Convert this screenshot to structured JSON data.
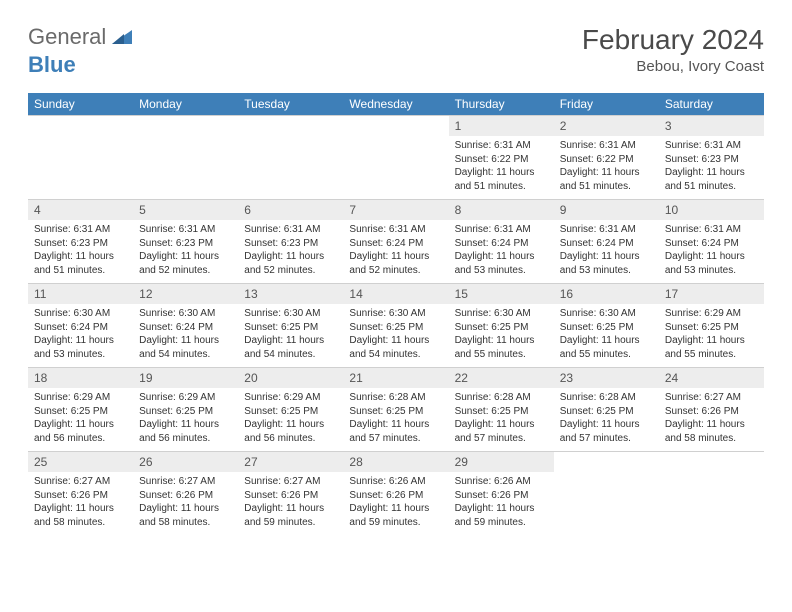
{
  "logo": {
    "general": "General",
    "blue": "Blue"
  },
  "title": "February 2024",
  "location": "Bebou, Ivory Coast",
  "colors": {
    "header_bg": "#3e7fb8",
    "header_text": "#ffffff",
    "daynum_bg": "#ededed",
    "body_text": "#333333",
    "logo_gray": "#6a6a6a",
    "logo_blue": "#3e7fb8",
    "border": "#d0d0d0",
    "background": "#ffffff"
  },
  "typography": {
    "title_fontsize": 28,
    "location_fontsize": 15,
    "header_fontsize": 12,
    "daynum_fontsize": 12,
    "content_fontsize": 10
  },
  "dayNames": [
    "Sunday",
    "Monday",
    "Tuesday",
    "Wednesday",
    "Thursday",
    "Friday",
    "Saturday"
  ],
  "weeks": [
    [
      {
        "empty": true
      },
      {
        "empty": true
      },
      {
        "empty": true
      },
      {
        "empty": true
      },
      {
        "num": "1",
        "sunrise": "Sunrise: 6:31 AM",
        "sunset": "Sunset: 6:22 PM",
        "daylight": "Daylight: 11 hours and 51 minutes."
      },
      {
        "num": "2",
        "sunrise": "Sunrise: 6:31 AM",
        "sunset": "Sunset: 6:22 PM",
        "daylight": "Daylight: 11 hours and 51 minutes."
      },
      {
        "num": "3",
        "sunrise": "Sunrise: 6:31 AM",
        "sunset": "Sunset: 6:23 PM",
        "daylight": "Daylight: 11 hours and 51 minutes."
      }
    ],
    [
      {
        "num": "4",
        "sunrise": "Sunrise: 6:31 AM",
        "sunset": "Sunset: 6:23 PM",
        "daylight": "Daylight: 11 hours and 51 minutes."
      },
      {
        "num": "5",
        "sunrise": "Sunrise: 6:31 AM",
        "sunset": "Sunset: 6:23 PM",
        "daylight": "Daylight: 11 hours and 52 minutes."
      },
      {
        "num": "6",
        "sunrise": "Sunrise: 6:31 AM",
        "sunset": "Sunset: 6:23 PM",
        "daylight": "Daylight: 11 hours and 52 minutes."
      },
      {
        "num": "7",
        "sunrise": "Sunrise: 6:31 AM",
        "sunset": "Sunset: 6:24 PM",
        "daylight": "Daylight: 11 hours and 52 minutes."
      },
      {
        "num": "8",
        "sunrise": "Sunrise: 6:31 AM",
        "sunset": "Sunset: 6:24 PM",
        "daylight": "Daylight: 11 hours and 53 minutes."
      },
      {
        "num": "9",
        "sunrise": "Sunrise: 6:31 AM",
        "sunset": "Sunset: 6:24 PM",
        "daylight": "Daylight: 11 hours and 53 minutes."
      },
      {
        "num": "10",
        "sunrise": "Sunrise: 6:31 AM",
        "sunset": "Sunset: 6:24 PM",
        "daylight": "Daylight: 11 hours and 53 minutes."
      }
    ],
    [
      {
        "num": "11",
        "sunrise": "Sunrise: 6:30 AM",
        "sunset": "Sunset: 6:24 PM",
        "daylight": "Daylight: 11 hours and 53 minutes."
      },
      {
        "num": "12",
        "sunrise": "Sunrise: 6:30 AM",
        "sunset": "Sunset: 6:24 PM",
        "daylight": "Daylight: 11 hours and 54 minutes."
      },
      {
        "num": "13",
        "sunrise": "Sunrise: 6:30 AM",
        "sunset": "Sunset: 6:25 PM",
        "daylight": "Daylight: 11 hours and 54 minutes."
      },
      {
        "num": "14",
        "sunrise": "Sunrise: 6:30 AM",
        "sunset": "Sunset: 6:25 PM",
        "daylight": "Daylight: 11 hours and 54 minutes."
      },
      {
        "num": "15",
        "sunrise": "Sunrise: 6:30 AM",
        "sunset": "Sunset: 6:25 PM",
        "daylight": "Daylight: 11 hours and 55 minutes."
      },
      {
        "num": "16",
        "sunrise": "Sunrise: 6:30 AM",
        "sunset": "Sunset: 6:25 PM",
        "daylight": "Daylight: 11 hours and 55 minutes."
      },
      {
        "num": "17",
        "sunrise": "Sunrise: 6:29 AM",
        "sunset": "Sunset: 6:25 PM",
        "daylight": "Daylight: 11 hours and 55 minutes."
      }
    ],
    [
      {
        "num": "18",
        "sunrise": "Sunrise: 6:29 AM",
        "sunset": "Sunset: 6:25 PM",
        "daylight": "Daylight: 11 hours and 56 minutes."
      },
      {
        "num": "19",
        "sunrise": "Sunrise: 6:29 AM",
        "sunset": "Sunset: 6:25 PM",
        "daylight": "Daylight: 11 hours and 56 minutes."
      },
      {
        "num": "20",
        "sunrise": "Sunrise: 6:29 AM",
        "sunset": "Sunset: 6:25 PM",
        "daylight": "Daylight: 11 hours and 56 minutes."
      },
      {
        "num": "21",
        "sunrise": "Sunrise: 6:28 AM",
        "sunset": "Sunset: 6:25 PM",
        "daylight": "Daylight: 11 hours and 57 minutes."
      },
      {
        "num": "22",
        "sunrise": "Sunrise: 6:28 AM",
        "sunset": "Sunset: 6:25 PM",
        "daylight": "Daylight: 11 hours and 57 minutes."
      },
      {
        "num": "23",
        "sunrise": "Sunrise: 6:28 AM",
        "sunset": "Sunset: 6:25 PM",
        "daylight": "Daylight: 11 hours and 57 minutes."
      },
      {
        "num": "24",
        "sunrise": "Sunrise: 6:27 AM",
        "sunset": "Sunset: 6:26 PM",
        "daylight": "Daylight: 11 hours and 58 minutes."
      }
    ],
    [
      {
        "num": "25",
        "sunrise": "Sunrise: 6:27 AM",
        "sunset": "Sunset: 6:26 PM",
        "daylight": "Daylight: 11 hours and 58 minutes."
      },
      {
        "num": "26",
        "sunrise": "Sunrise: 6:27 AM",
        "sunset": "Sunset: 6:26 PM",
        "daylight": "Daylight: 11 hours and 58 minutes."
      },
      {
        "num": "27",
        "sunrise": "Sunrise: 6:27 AM",
        "sunset": "Sunset: 6:26 PM",
        "daylight": "Daylight: 11 hours and 59 minutes."
      },
      {
        "num": "28",
        "sunrise": "Sunrise: 6:26 AM",
        "sunset": "Sunset: 6:26 PM",
        "daylight": "Daylight: 11 hours and 59 minutes."
      },
      {
        "num": "29",
        "sunrise": "Sunrise: 6:26 AM",
        "sunset": "Sunset: 6:26 PM",
        "daylight": "Daylight: 11 hours and 59 minutes."
      },
      {
        "empty": true
      },
      {
        "empty": true
      }
    ]
  ]
}
